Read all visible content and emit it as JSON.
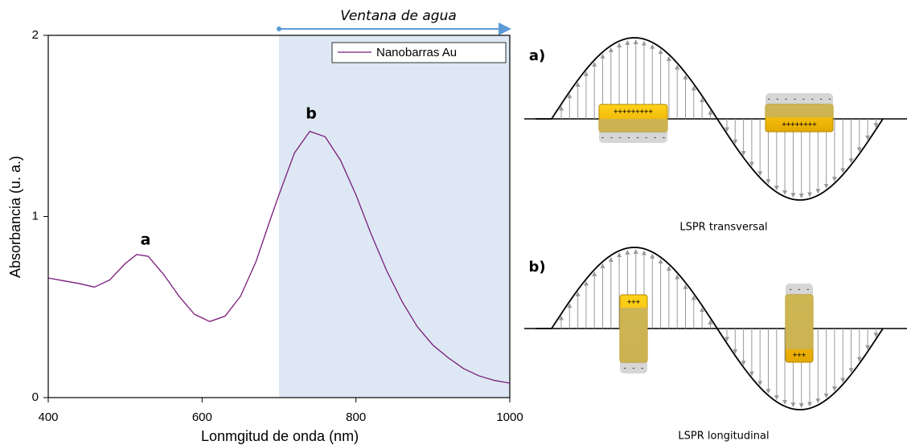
{
  "chart_data": {
    "type": "line",
    "x_label": "Lonmgitud de onda (nm)",
    "y_label": "Absorbancia (u. a.)",
    "x": [
      400,
      420,
      440,
      460,
      480,
      500,
      515,
      530,
      550,
      570,
      590,
      610,
      630,
      650,
      670,
      690,
      700,
      720,
      740,
      760,
      780,
      800,
      820,
      840,
      860,
      880,
      900,
      920,
      940,
      960,
      980,
      1000
    ],
    "series": [
      {
        "name": "Nanobarras Au",
        "color": "#7a1a7a",
        "values": [
          0.66,
          0.645,
          0.63,
          0.61,
          0.65,
          0.74,
          0.79,
          0.78,
          0.68,
          0.56,
          0.46,
          0.42,
          0.45,
          0.56,
          0.75,
          1.0,
          1.12,
          1.35,
          1.47,
          1.44,
          1.31,
          1.12,
          0.9,
          0.7,
          0.53,
          0.39,
          0.29,
          0.22,
          0.16,
          0.12,
          0.095,
          0.08
        ]
      }
    ],
    "xlim": [
      400,
      1000
    ],
    "xticks": [
      400,
      600,
      800,
      1000
    ],
    "ylim": [
      0,
      2
    ],
    "yticks": [
      0,
      1,
      2
    ],
    "highlight_range": [
      700,
      1000
    ],
    "highlight_label": "Ventana de agua",
    "highlight_color": "#dde8f4",
    "annotations": [
      "a",
      "b"
    ],
    "legend": "top-right"
  },
  "diagram": {
    "panels": [
      {
        "label": "a)",
        "caption": "LSPR transversal",
        "rods": [
          {
            "top": "+++++++++",
            "bottom": "- - - - - - - -"
          },
          {
            "top": "- - - - - - - -",
            "bottom": "++++++++"
          }
        ]
      },
      {
        "label": "b)",
        "caption": "LSPR longitudinal",
        "rods": [
          {
            "top": "+++",
            "bottom": "- - -"
          },
          {
            "top": "- - -",
            "bottom": "+++"
          }
        ]
      }
    ]
  }
}
